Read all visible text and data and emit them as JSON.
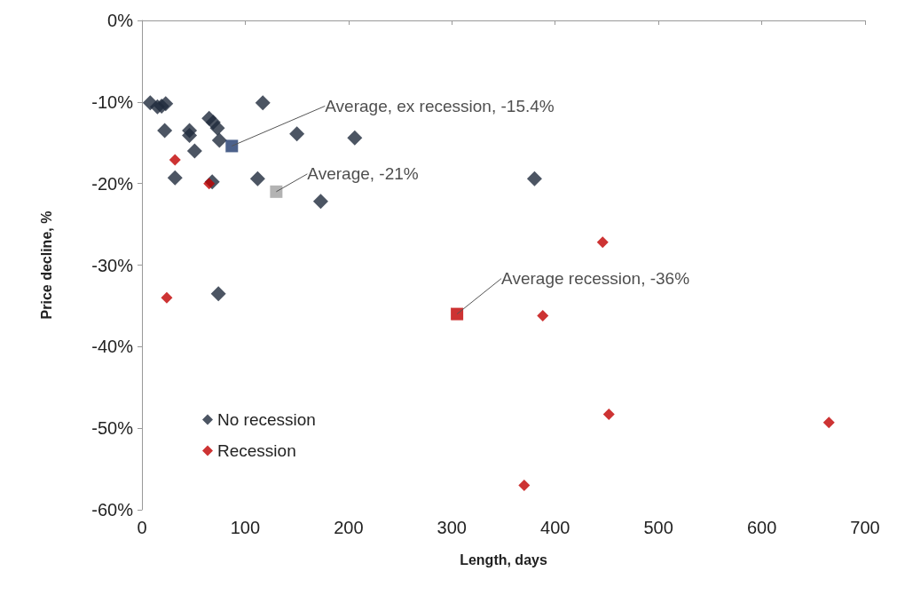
{
  "chart_data": {
    "type": "scatter",
    "xlabel": "Length, days",
    "ylabel": "Price decline, %",
    "xlim": [
      0,
      700
    ],
    "xticks": [
      0,
      100,
      200,
      300,
      400,
      500,
      600,
      700
    ],
    "ylim": [
      -60,
      0
    ],
    "yticks": [
      {
        "value": -60,
        "label": "-60%"
      },
      {
        "value": -50,
        "label": "-50%"
      },
      {
        "value": -40,
        "label": "-40%"
      },
      {
        "value": -30,
        "label": "-30%"
      },
      {
        "value": -20,
        "label": "-20%"
      },
      {
        "value": -10,
        "label": "-10%"
      },
      {
        "value": 0,
        "label": "0%"
      }
    ],
    "grid": false,
    "legend": "bottom left",
    "marker": "diamond",
    "series": [
      {
        "name": "No recession",
        "color": "#1f2a3c",
        "x": [
          8,
          15,
          19,
          23,
          22,
          46,
          46,
          51,
          65,
          69,
          73,
          75,
          117,
          150,
          206,
          32,
          68,
          112,
          173,
          380,
          74
        ],
        "values": [
          -10.1,
          -10.6,
          -10.5,
          -10.2,
          -13.5,
          -13.5,
          -14.1,
          -16.0,
          -12.0,
          -12.5,
          -13.2,
          -14.7,
          -10.1,
          -13.9,
          -14.4,
          -19.3,
          -19.8,
          -19.4,
          -22.2,
          -19.4,
          -33.5
        ]
      },
      {
        "name": "Recession",
        "color": "#c00000",
        "x": [
          32,
          65,
          24,
          446,
          388,
          452,
          665,
          370
        ],
        "values": [
          -17.1,
          -20.0,
          -34.0,
          -27.2,
          -36.2,
          -48.3,
          -49.3,
          -57.0
        ]
      },
      {
        "color": "#1f3a6e",
        "marker": "square",
        "x": [
          87
        ],
        "values": [
          -15.4
        ]
      },
      {
        "color": "#a0a0a0",
        "marker": "square",
        "x": [
          130
        ],
        "values": [
          -21
        ]
      },
      {
        "color": "#c00000",
        "marker": "square",
        "x": [
          305
        ],
        "values": [
          -36
        ]
      }
    ],
    "annotations": [
      {
        "text": "Average, ex recession, -15.4%",
        "x": 87,
        "y": -15.4
      },
      {
        "text": "Average, -21%",
        "x": 130,
        "y": -21
      },
      {
        "text": "Average recession, -36%",
        "x": 305,
        "y": -36
      }
    ]
  }
}
